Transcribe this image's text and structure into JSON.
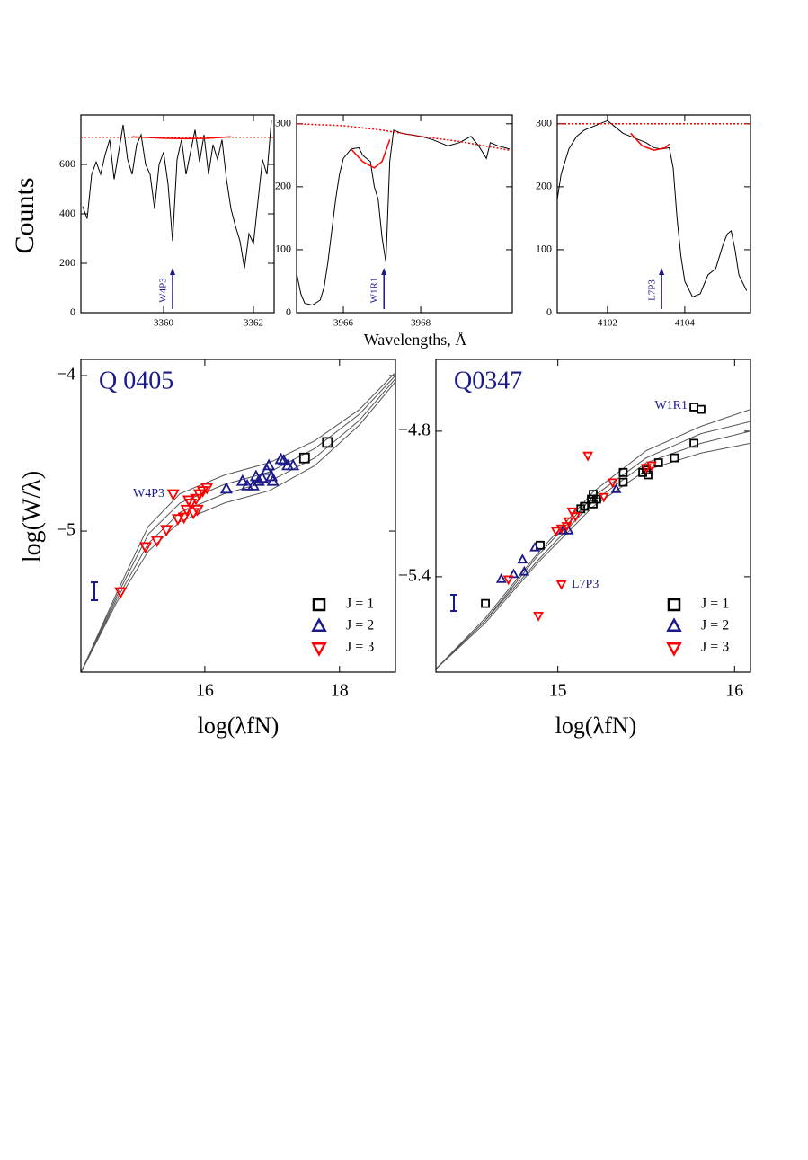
{
  "chart_data": [
    {
      "type": "line",
      "y_label": "Counts",
      "xlim": [
        3358.16,
        3362.46
      ],
      "ylim": [
        0,
        800
      ],
      "xticks": [
        3360,
        3362
      ],
      "yticks": [
        0,
        200,
        400,
        600
      ],
      "series": [
        {
          "color": "#000000",
          "x": [
            3358.2,
            3358.3,
            3358.4,
            3358.5,
            3358.6,
            3358.7,
            3358.8,
            3358.9,
            3359.0,
            3359.1,
            3359.2,
            3359.3,
            3359.4,
            3359.5,
            3359.6,
            3359.7,
            3359.8,
            3359.9,
            3360.0,
            3360.1,
            3360.2,
            3360.3,
            3360.4,
            3360.5,
            3360.6,
            3360.7,
            3360.8,
            3360.9,
            3361.0,
            3361.1,
            3361.2,
            3361.3,
            3361.4,
            3361.5,
            3361.6,
            3361.7,
            3361.8,
            3361.9,
            3362.0,
            3362.1,
            3362.2,
            3362.3,
            3362.4
          ],
          "values": [
            430,
            380,
            560,
            610,
            560,
            640,
            700,
            540,
            650,
            760,
            620,
            560,
            680,
            720,
            600,
            560,
            420,
            600,
            650,
            520,
            290,
            620,
            700,
            560,
            650,
            740,
            610,
            720,
            560,
            680,
            620,
            700,
            540,
            420,
            350,
            290,
            180,
            320,
            280,
            450,
            620,
            560,
            780
          ]
        },
        {
          "color": "#ff0000",
          "line_style": "dotted",
          "x": [
            3358.16,
            3362.46
          ],
          "values": [
            710,
            710
          ]
        },
        {
          "color": "#ff0000",
          "x": [
            3359.3,
            3360.0,
            3360.5,
            3361.0,
            3361.5
          ],
          "values": [
            712,
            706,
            704,
            706,
            712
          ]
        }
      ],
      "annotations": [
        {
          "text": "W4P3",
          "x": 3360.2
        }
      ]
    },
    {
      "type": "line",
      "x_label": "Wavelengths, Å",
      "xlim": [
        3964.79,
        3970.37
      ],
      "ylim": [
        0,
        314
      ],
      "xticks": [
        3966,
        3968
      ],
      "yticks": [
        0,
        100,
        200,
        300
      ],
      "series": [
        {
          "color": "#000000",
          "x": [
            3964.8,
            3964.9,
            3965.0,
            3965.2,
            3965.4,
            3965.5,
            3965.6,
            3965.7,
            3965.8,
            3965.9,
            3966.0,
            3966.2,
            3966.4,
            3966.5,
            3966.7,
            3966.8,
            3966.9,
            3967.0,
            3967.1,
            3967.2,
            3967.3,
            3967.5,
            3967.8,
            3968.0,
            3968.3,
            3968.5,
            3968.7,
            3969.0,
            3969.3,
            3969.5,
            3969.7,
            3969.8,
            3970.0,
            3970.3
          ],
          "values": [
            60,
            30,
            15,
            12,
            20,
            40,
            80,
            130,
            180,
            220,
            245,
            260,
            262,
            250,
            240,
            200,
            180,
            120,
            80,
            240,
            290,
            285,
            282,
            280,
            275,
            270,
            265,
            270,
            280,
            265,
            245,
            270,
            265,
            260
          ]
        },
        {
          "color": "#ff0000",
          "line_style": "dotted",
          "x": [
            3964.8,
            3966,
            3967,
            3968,
            3969,
            3970.3
          ],
          "values": [
            300,
            297,
            290,
            280,
            272,
            258
          ]
        },
        {
          "color": "#ff0000",
          "x": [
            3966.2,
            3966.5,
            3966.8,
            3967.0,
            3967.2
          ],
          "values": [
            260,
            240,
            230,
            240,
            275
          ]
        }
      ],
      "annotations": [
        {
          "text": "W1R1",
          "x": 3967.05
        }
      ]
    },
    {
      "type": "line",
      "xlim": [
        4100.7,
        4105.7
      ],
      "ylim": [
        0,
        314
      ],
      "xticks": [
        4102,
        4104
      ],
      "yticks": [
        0,
        100,
        200,
        300
      ],
      "series": [
        {
          "color": "#000000",
          "x": [
            4100.7,
            4100.8,
            4101.0,
            4101.2,
            4101.4,
            4101.6,
            4101.8,
            4102.0,
            4102.2,
            4102.4,
            4102.6,
            4102.8,
            4103.0,
            4103.2,
            4103.4,
            4103.6,
            4103.7,
            4103.8,
            4103.9,
            4104.0,
            4104.2,
            4104.4,
            4104.6,
            4104.8,
            4105.0,
            4105.1,
            4105.2,
            4105.3,
            4105.4,
            4105.6
          ],
          "values": [
            180,
            220,
            260,
            280,
            290,
            295,
            300,
            305,
            295,
            285,
            280,
            275,
            270,
            262,
            260,
            262,
            230,
            150,
            90,
            50,
            25,
            30,
            60,
            70,
            110,
            125,
            130,
            100,
            60,
            35
          ]
        },
        {
          "color": "#ff0000",
          "line_style": "dotted",
          "x": [
            4100.7,
            4105.7
          ],
          "values": [
            300,
            300
          ]
        },
        {
          "color": "#ff0000",
          "x": [
            4102.6,
            4102.9,
            4103.2,
            4103.5,
            4103.6
          ],
          "values": [
            285,
            265,
            258,
            262,
            268
          ]
        }
      ],
      "annotations": [
        {
          "text": "L7P3",
          "x": 4103.4
        }
      ]
    },
    {
      "type": "scatter",
      "title": "Q 0405",
      "x_label": "log(λfN)",
      "y_label": "log(W/λ)",
      "xlim": [
        14.16,
        18.83
      ],
      "ylim": [
        -5.907,
        -3.896
      ],
      "xticks": [
        16,
        18
      ],
      "yticks": [
        {
          "value": -4,
          "label": "−4"
        },
        {
          "value": -5,
          "label": "−5"
        }
      ],
      "legend": "lower right",
      "series": [
        {
          "color": "#555555",
          "x": [
            14.16,
            14.69,
            15.16,
            15.63,
            16.29,
            16.96,
            17.63,
            18.29,
            18.83
          ],
          "values": [
            -5.91,
            -5.4,
            -4.97,
            -4.76,
            -4.64,
            -4.56,
            -4.42,
            -4.22,
            -3.98
          ]
        },
        {
          "color": "#555555",
          "x": [
            14.16,
            14.69,
            15.16,
            15.63,
            16.29,
            16.96,
            17.63,
            18.29,
            18.83
          ],
          "values": [
            -5.91,
            -5.42,
            -5.02,
            -4.82,
            -4.7,
            -4.62,
            -4.47,
            -4.25,
            -4.0
          ]
        },
        {
          "color": "#555555",
          "x": [
            14.16,
            14.69,
            15.16,
            15.63,
            16.29,
            16.96,
            17.63,
            18.29,
            18.83
          ],
          "values": [
            -5.91,
            -5.44,
            -5.08,
            -4.88,
            -4.76,
            -4.68,
            -4.53,
            -4.29,
            -4.02
          ]
        },
        {
          "color": "#555555",
          "x": [
            14.16,
            14.69,
            15.16,
            15.63,
            16.29,
            16.96,
            17.63,
            18.29,
            18.83
          ],
          "values": [
            -5.91,
            -5.46,
            -5.13,
            -4.94,
            -4.82,
            -4.74,
            -4.58,
            -4.32,
            -4.04
          ]
        },
        {
          "name": "J = 1",
          "marker": "square",
          "color": "#000000",
          "x": [
            17.82,
            17.48
          ],
          "values": [
            -4.43,
            -4.53
          ]
        },
        {
          "name": "J = 2",
          "marker": "triangle-up",
          "color": "#1a1a8c",
          "x": [
            16.32,
            16.56,
            16.63,
            16.72,
            16.76,
            16.8,
            16.85,
            16.92,
            16.95,
            16.99,
            17.01,
            17.13,
            17.17,
            17.23,
            17.31
          ],
          "values": [
            -4.73,
            -4.68,
            -4.71,
            -4.71,
            -4.65,
            -4.68,
            -4.66,
            -4.61,
            -4.58,
            -4.65,
            -4.68,
            -4.54,
            -4.55,
            -4.58,
            -4.58
          ]
        },
        {
          "name": "J = 3",
          "marker": "triangle-down",
          "color": "#ff0000",
          "x": [
            14.75,
            15.12,
            15.29,
            15.43,
            15.6,
            15.53,
            15.69,
            15.73,
            15.79,
            15.83,
            15.87,
            15.89,
            15.92,
            15.97,
            16.03,
            15.76
          ],
          "values": [
            -5.39,
            -5.1,
            -5.06,
            -4.99,
            -4.92,
            -4.76,
            -4.91,
            -4.86,
            -4.82,
            -4.88,
            -4.79,
            -4.86,
            -4.76,
            -4.74,
            -4.72,
            -4.8
          ]
        }
      ],
      "annotations": [
        {
          "text": "W4P3"
        }
      ]
    },
    {
      "type": "scatter",
      "title": "Q0347",
      "x_label": "log(λfN)",
      "xlim": [
        14.31,
        16.09
      ],
      "ylim": [
        -5.793,
        -4.504
      ],
      "xticks": [
        15,
        16
      ],
      "yticks": [
        {
          "value": -4.8,
          "label": "−4.8"
        },
        {
          "value": -5.4,
          "label": "−5.4"
        }
      ],
      "legend": "lower right",
      "series": [
        {
          "color": "#555555",
          "x": [
            14.31,
            14.59,
            14.89,
            15.2,
            15.5,
            15.81,
            16.09
          ],
          "values": [
            -5.78,
            -5.57,
            -5.3,
            -5.05,
            -4.88,
            -4.78,
            -4.71
          ]
        },
        {
          "color": "#555555",
          "x": [
            14.31,
            14.59,
            14.89,
            15.2,
            15.5,
            15.81,
            16.09
          ],
          "values": [
            -5.78,
            -5.58,
            -5.31,
            -5.07,
            -4.91,
            -4.81,
            -4.76
          ]
        },
        {
          "color": "#555555",
          "x": [
            14.31,
            14.59,
            14.89,
            15.2,
            15.5,
            15.81,
            16.09
          ],
          "values": [
            -5.78,
            -5.58,
            -5.33,
            -5.09,
            -4.93,
            -4.85,
            -4.8
          ]
        },
        {
          "color": "#555555",
          "x": [
            14.31,
            14.59,
            14.89,
            15.2,
            15.5,
            15.81,
            16.09
          ],
          "values": [
            -5.78,
            -5.59,
            -5.34,
            -5.11,
            -4.96,
            -4.89,
            -4.85
          ]
        },
        {
          "name": "J = 1",
          "marker": "square",
          "color": "#000000",
          "x": [
            14.59,
            14.9,
            15.13,
            15.15,
            15.19,
            15.2,
            15.2,
            15.22,
            15.37,
            15.37,
            15.48,
            15.5,
            15.51,
            15.57,
            15.66,
            15.77,
            15.77,
            15.81
          ],
          "values": [
            -5.51,
            -5.27,
            -5.12,
            -5.11,
            -5.08,
            -5.06,
            -5.1,
            -5.08,
            -4.97,
            -5.01,
            -4.97,
            -4.96,
            -4.98,
            -4.93,
            -4.91,
            -4.85,
            -4.7,
            -4.71
          ]
        },
        {
          "name": "J = 2",
          "marker": "triangle-up",
          "color": "#1a1a8c",
          "x": [
            14.68,
            14.75,
            14.81,
            14.8,
            14.87,
            15.06,
            15.03,
            15.33
          ],
          "values": [
            -5.41,
            -5.39,
            -5.38,
            -5.33,
            -5.28,
            -5.21,
            -5.21,
            -5.04
          ]
        },
        {
          "name": "J = 3",
          "marker": "triangle-down",
          "color": "#ff0000",
          "x": [
            14.72,
            14.89,
            15.17,
            15.02,
            14.99,
            15.02,
            15.05,
            15.06,
            15.08,
            15.1,
            15.26,
            15.31,
            15.5,
            15.53
          ],
          "values": [
            -5.41,
            -5.56,
            -4.9,
            -5.43,
            -5.21,
            -5.2,
            -5.19,
            -5.17,
            -5.13,
            -5.15,
            -5.07,
            -5.01,
            -4.95,
            -4.94
          ]
        }
      ],
      "annotations": [
        {
          "text": "W1R1"
        },
        {
          "text": "L7P3"
        }
      ]
    }
  ]
}
